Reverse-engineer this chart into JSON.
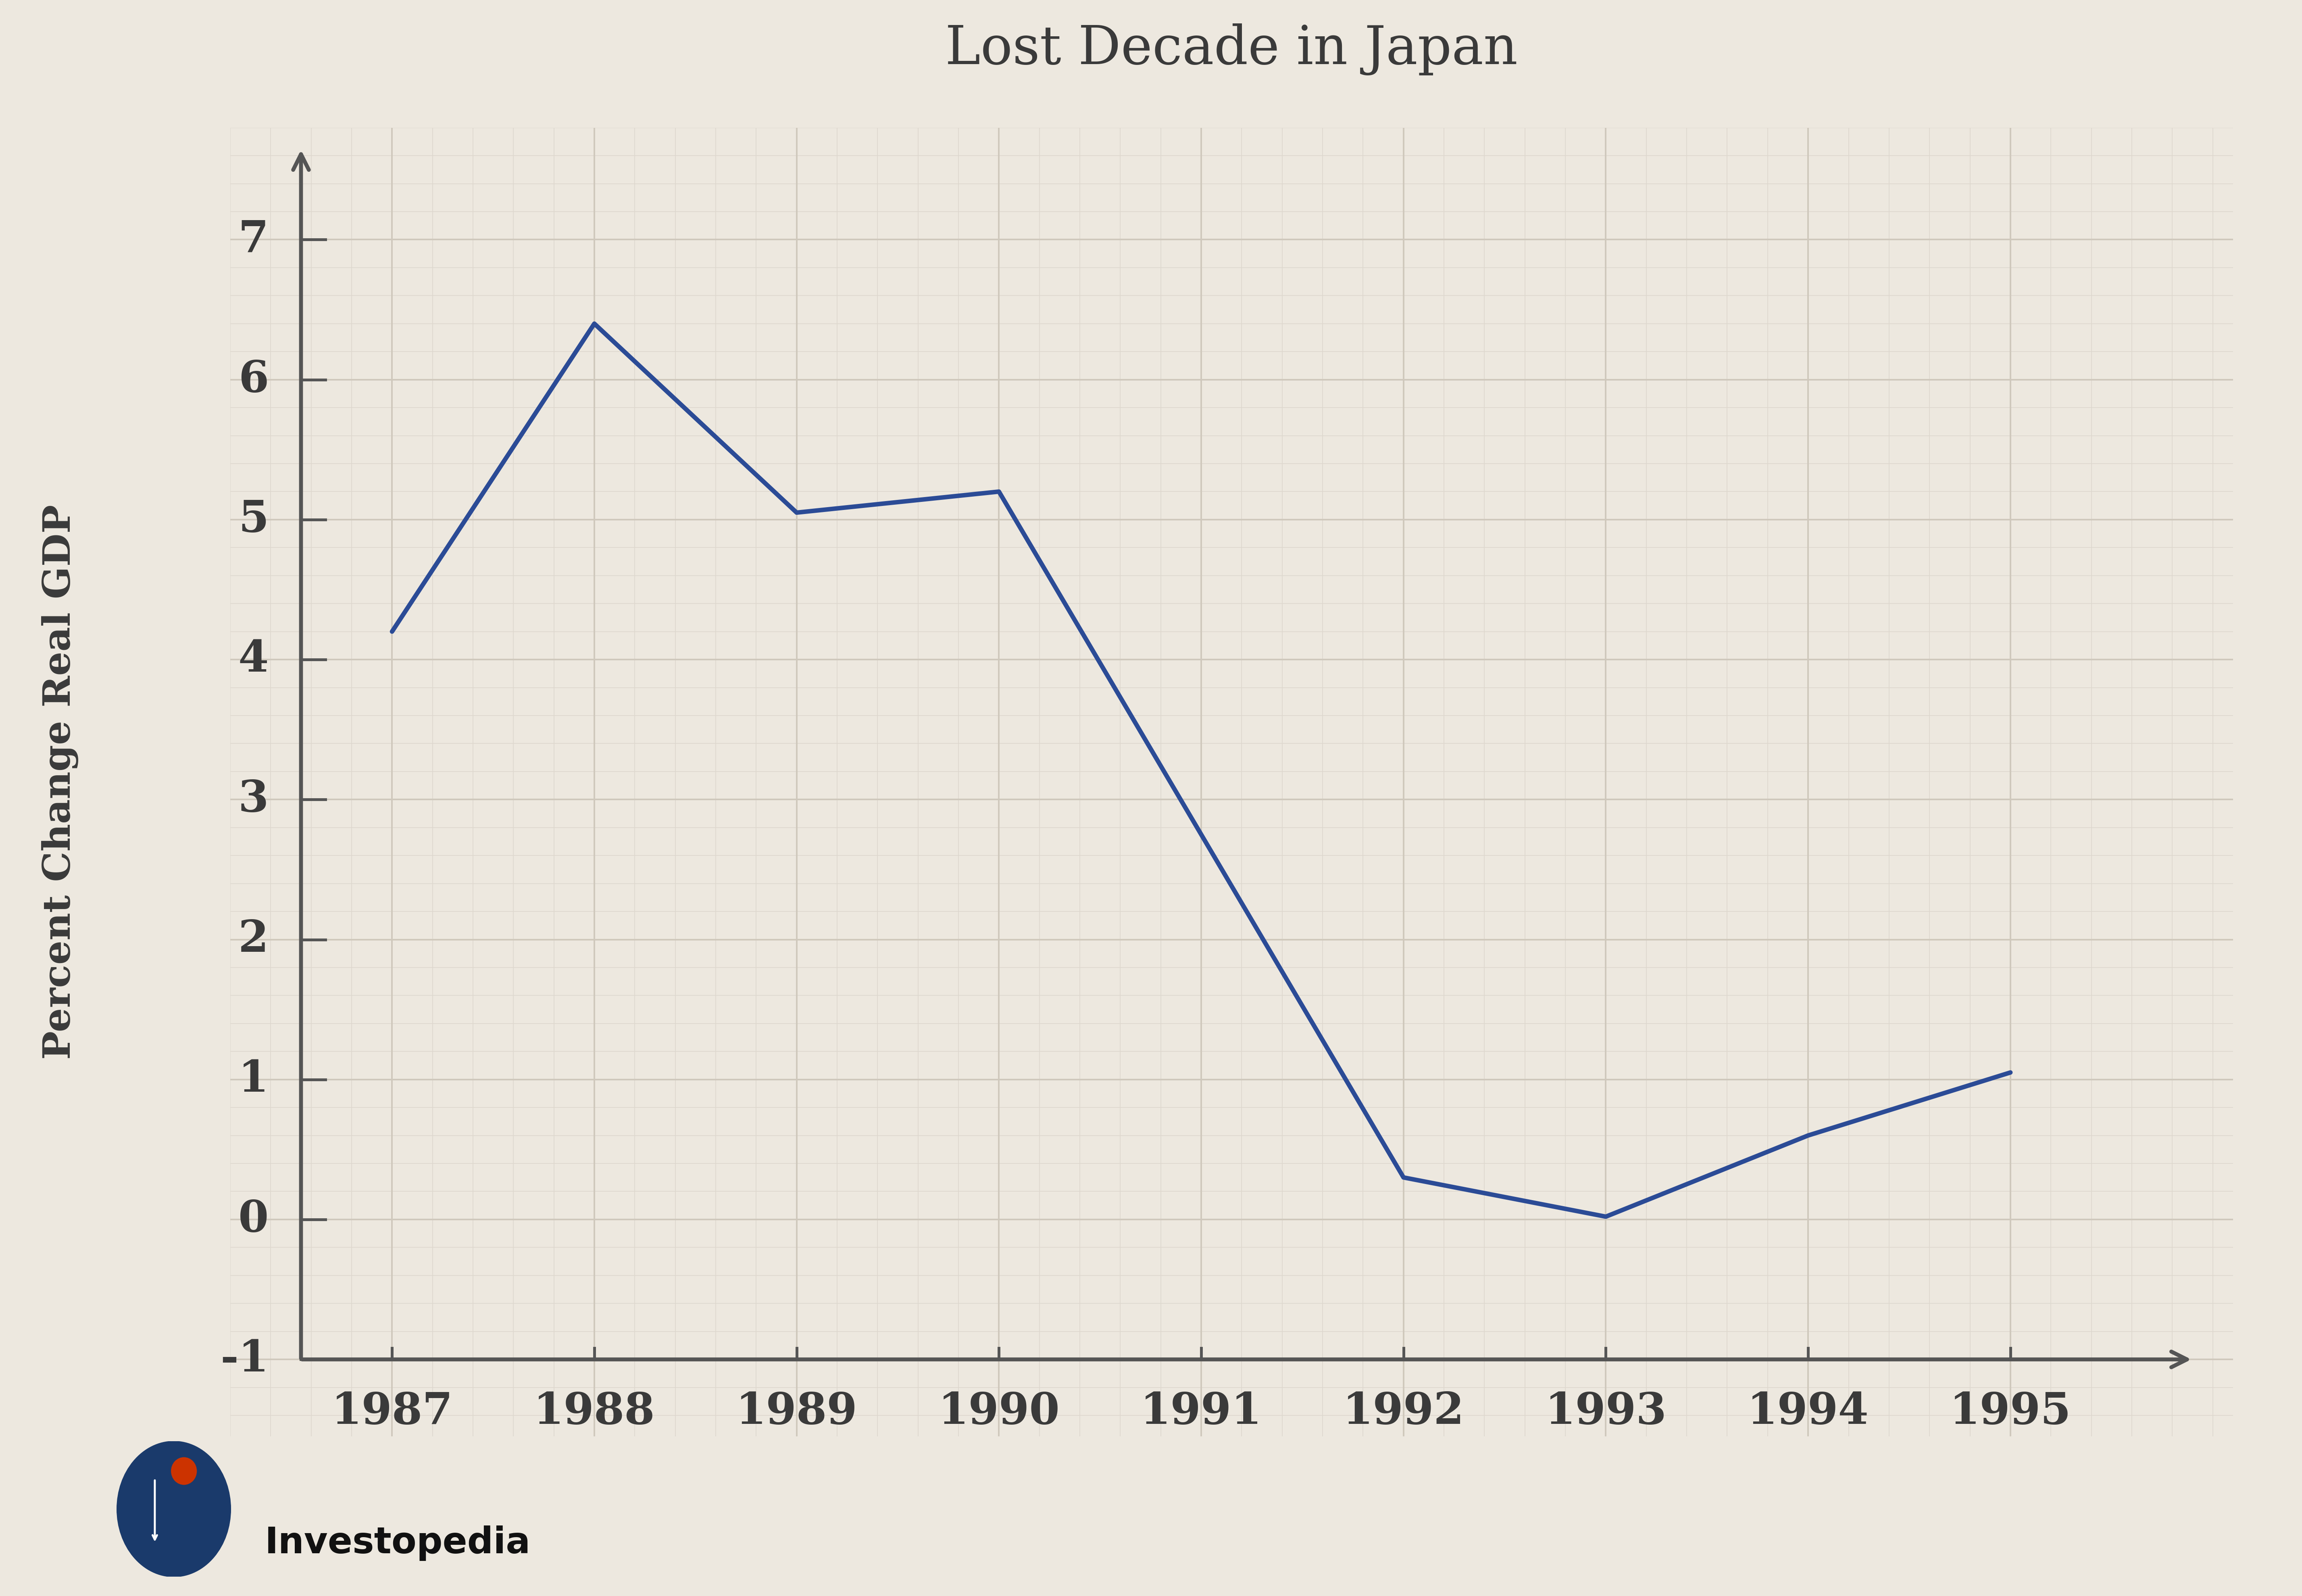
{
  "title": "Lost Decade in Japan",
  "ylabel": "Percent Change Real GDP",
  "years": [
    1987,
    1988,
    1989,
    1990,
    1992,
    1993,
    1994,
    1995
  ],
  "values": [
    4.2,
    6.4,
    5.05,
    5.2,
    0.3,
    0.02,
    0.6,
    1.05
  ],
  "line_color": "#2b4b96",
  "line_width": 8,
  "background_color": "#ede8df",
  "grid_color_major": "#cfc8bc",
  "grid_color_minor": "#ddd7cd",
  "axis_color": "#555555",
  "text_color": "#3a3a3a",
  "title_fontsize": 95,
  "label_fontsize": 68,
  "tick_fontsize": 78,
  "yticks": [
    -1,
    0,
    1,
    2,
    3,
    4,
    5,
    6,
    7
  ],
  "xtick_labels": [
    "1987",
    "1988",
    "1989",
    "1990",
    "1991",
    "1992",
    "1993",
    "1994",
    "1995"
  ],
  "xtick_positions": [
    1987,
    1988,
    1989,
    1990,
    1991,
    1992,
    1993,
    1994,
    1995
  ],
  "ylim": [
    -1.55,
    7.8
  ],
  "xlim": [
    1986.2,
    1996.1
  ]
}
